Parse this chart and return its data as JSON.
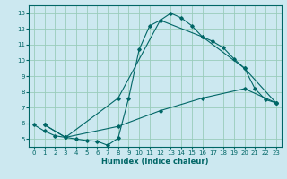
{
  "xlabel": "Humidex (Indice chaleur)",
  "background_color": "#cce8f0",
  "grid_color": "#99ccbb",
  "line_color": "#006666",
  "xlim": [
    -0.5,
    23.5
  ],
  "ylim": [
    4.5,
    13.5
  ],
  "xticks": [
    0,
    1,
    2,
    3,
    4,
    5,
    6,
    7,
    8,
    9,
    10,
    11,
    12,
    13,
    14,
    15,
    16,
    17,
    18,
    19,
    20,
    21,
    22,
    23
  ],
  "yticks": [
    5,
    6,
    7,
    8,
    9,
    10,
    11,
    12,
    13
  ],
  "curve1_x": [
    0,
    1,
    2,
    3,
    4,
    5,
    6,
    7,
    8,
    9,
    10,
    11,
    12,
    13,
    14,
    15,
    16,
    17,
    18,
    19,
    20,
    21,
    22,
    23
  ],
  "curve1_y": [
    5.9,
    5.5,
    5.2,
    5.1,
    5.0,
    4.9,
    4.85,
    4.6,
    5.05,
    7.6,
    10.7,
    12.2,
    12.55,
    13.0,
    12.7,
    12.2,
    11.5,
    11.2,
    10.8,
    10.1,
    9.5,
    8.2,
    7.5,
    7.3
  ],
  "curve2_x": [
    1,
    3,
    8,
    12,
    16,
    20,
    23
  ],
  "curve2_y": [
    5.9,
    5.1,
    7.6,
    12.55,
    11.5,
    9.5,
    7.3
  ],
  "curve3_x": [
    1,
    3,
    8,
    12,
    16,
    20,
    23
  ],
  "curve3_y": [
    5.9,
    5.1,
    5.8,
    6.8,
    7.6,
    8.2,
    7.3
  ]
}
